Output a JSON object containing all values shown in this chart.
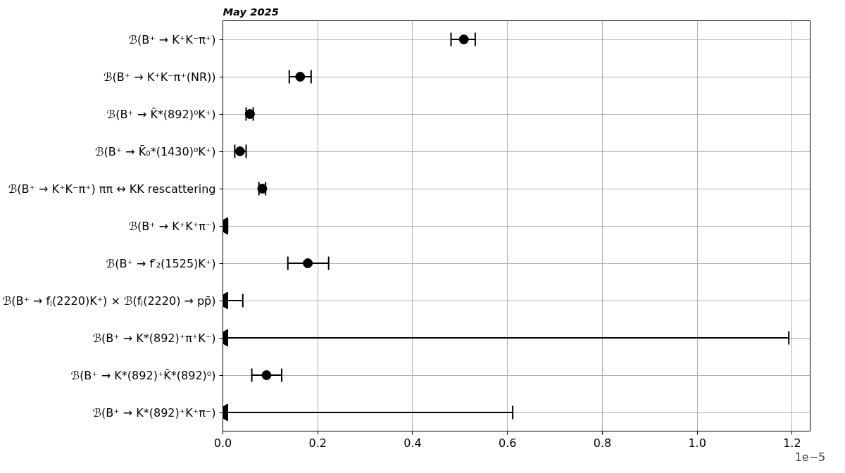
{
  "chart_data": {
    "type": "scatter",
    "orientation": "horizontal",
    "categories": [
      "ℬ(B⁺ → K⁺K⁻π⁺)",
      "ℬ(B⁺ → K⁺K⁻π⁺(NR))",
      "ℬ(B⁺ → K̄*(892)⁰K⁺)",
      "ℬ(B⁺ → K̄₀*(1430)⁰K⁺)",
      "ℬ(B⁺ → K⁺K⁻π⁺) ππ ↔ KK rescattering",
      "ℬ(B⁺ → K⁺K⁺π⁻)",
      "ℬ(B⁺ → f′₂(1525)K⁺)",
      "ℬ(B⁺ → fⱼ(2220)K⁺) × ℬ(fⱼ(2220) → pp̄)",
      "ℬ(B⁺ → K*(892)⁺π⁺K⁻)",
      "ℬ(B⁺ → K*(892)⁺K̄*(892)⁰)",
      "ℬ(B⁺ → K*(892)⁺K⁺π⁻)"
    ],
    "series": [
      {
        "marker": "circle",
        "color": "#000000",
        "values": [
          0.508,
          0.163,
          0.057,
          0.036,
          0.083,
          null,
          0.179,
          null,
          null,
          0.092,
          null
        ],
        "errors": [
          [
            0.481,
            0.532
          ],
          [
            0.14,
            0.186
          ],
          [
            0.049,
            0.064
          ],
          [
            0.025,
            0.049
          ],
          [
            0.076,
            0.09
          ],
          null,
          [
            0.137,
            0.223
          ],
          null,
          null,
          [
            0.061,
            0.124
          ],
          null
        ]
      },
      {
        "marker": "triangle",
        "color": "#000000",
        "values": [
          null,
          null,
          null,
          null,
          null,
          0,
          null,
          0,
          0,
          null,
          0
        ],
        "errors": [
          null,
          null,
          null,
          null,
          null,
          [
            0,
            0.01
          ],
          null,
          [
            0,
            0.042
          ],
          [
            0,
            1.193
          ],
          null,
          [
            0,
            0.611
          ]
        ]
      }
    ],
    "xlim": [
      0,
      1.238
    ],
    "xticks": [
      {
        "value": 0,
        "label": "0.0"
      },
      0.2,
      0.4,
      0.6,
      0.8,
      {
        "value": 1,
        "label": "1.0"
      },
      1.2
    ],
    "grid": true,
    "annotations": [
      "1e−5",
      "May 2025"
    ]
  }
}
